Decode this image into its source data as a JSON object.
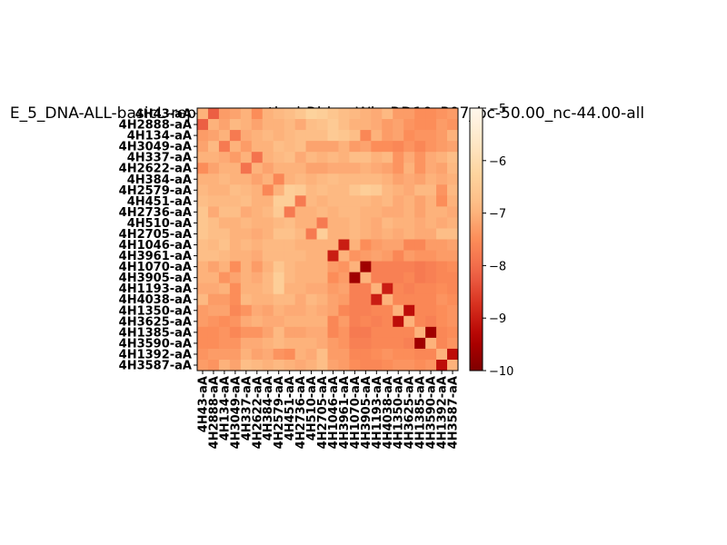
{
  "chart_data": {
    "type": "heatmap",
    "title": "E_5_DNA-ALL-basicL-rep-core_vertical-Ridge-WbnRD10_P07_bc-50.00_nc-44.00-all",
    "labels": [
      "4H43-aA",
      "4H2888-aA",
      "4H134-aA",
      "4H3049-aA",
      "4H337-aA",
      "4H2622-aA",
      "4H384-aA",
      "4H2579-aA",
      "4H451-aA",
      "4H2736-aA",
      "4H510-aA",
      "4H2705-aA",
      "4H1046-aA",
      "4H3961-aA",
      "4H1070-aA",
      "4H3905-aA",
      "4H1193-aA",
      "4H4038-aA",
      "4H1350-aA",
      "4H3625-aA",
      "4H1385-aA",
      "4H3590-aA",
      "4H1392-aA",
      "4H3587-aA"
    ],
    "colorbar": {
      "min": -10,
      "max": -5,
      "ticks": [
        -5,
        -6,
        -7,
        -8,
        -9,
        -10
      ],
      "colormap": "OrRd"
    },
    "values": [
      [
        -7.0,
        -8.2,
        -7.3,
        -7.2,
        -7.0,
        -7.5,
        -7.0,
        -6.9,
        -6.8,
        -6.6,
        -6.3,
        -6.4,
        -6.6,
        -6.8,
        -6.9,
        -7.0,
        -7.1,
        -6.9,
        -7.3,
        -7.3,
        -7.5,
        -7.5,
        -7.4,
        -7.3
      ],
      [
        -8.2,
        -7.0,
        -7.2,
        -6.9,
        -7.0,
        -7.2,
        -7.0,
        -7.0,
        -6.9,
        -7.1,
        -6.8,
        -6.7,
        -6.5,
        -6.8,
        -7.0,
        -7.0,
        -7.1,
        -7.3,
        -7.2,
        -7.4,
        -7.5,
        -7.5,
        -7.3,
        -7.4
      ],
      [
        -7.3,
        -7.2,
        -7.0,
        -7.8,
        -7.1,
        -7.0,
        -6.9,
        -7.0,
        -6.9,
        -6.8,
        -6.8,
        -6.8,
        -6.5,
        -6.6,
        -6.8,
        -7.6,
        -7.0,
        -7.3,
        -7.2,
        -7.5,
        -7.4,
        -7.4,
        -7.3,
        -7.0
      ],
      [
        -7.2,
        -6.9,
        -7.8,
        -7.0,
        -7.3,
        -7.0,
        -7.0,
        -6.8,
        -6.9,
        -6.8,
        -7.2,
        -7.2,
        -7.2,
        -7.0,
        -7.3,
        -7.2,
        -7.5,
        -7.5,
        -7.6,
        -7.4,
        -7.6,
        -7.4,
        -7.3,
        -7.2
      ],
      [
        -7.0,
        -7.0,
        -7.1,
        -7.3,
        -7.0,
        -7.9,
        -7.0,
        -6.9,
        -6.8,
        -7.1,
        -6.9,
        -7.0,
        -6.9,
        -7.0,
        -6.8,
        -6.8,
        -7.0,
        -6.9,
        -7.4,
        -7.1,
        -7.4,
        -7.1,
        -7.0,
        -6.8
      ],
      [
        -7.5,
        -7.2,
        -7.0,
        -7.0,
        -7.9,
        -7.0,
        -7.2,
        -7.0,
        -7.0,
        -7.0,
        -7.2,
        -7.2,
        -7.1,
        -7.1,
        -7.1,
        -7.0,
        -7.1,
        -7.2,
        -7.4,
        -7.0,
        -7.4,
        -7.1,
        -7.2,
        -6.9
      ],
      [
        -7.0,
        -7.0,
        -6.9,
        -7.0,
        -7.0,
        -7.2,
        -7.0,
        -7.6,
        -7.0,
        -6.9,
        -7.0,
        -6.9,
        -6.8,
        -6.9,
        -6.9,
        -6.9,
        -6.9,
        -7.0,
        -7.2,
        -7.1,
        -7.2,
        -7.0,
        -7.1,
        -7.0
      ],
      [
        -6.9,
        -7.0,
        -7.0,
        -6.8,
        -6.9,
        -7.0,
        -7.6,
        -7.0,
        -6.4,
        -6.5,
        -6.9,
        -6.8,
        -6.9,
        -6.9,
        -6.6,
        -6.4,
        -6.5,
        -6.9,
        -7.0,
        -7.1,
        -6.9,
        -6.9,
        -7.4,
        -6.9
      ],
      [
        -6.8,
        -6.9,
        -6.9,
        -6.9,
        -6.8,
        -7.0,
        -7.0,
        -6.4,
        -6.4,
        -7.8,
        -6.9,
        -7.0,
        -6.9,
        -6.9,
        -6.9,
        -6.9,
        -7.0,
        -6.9,
        -7.1,
        -7.0,
        -7.2,
        -7.0,
        -7.5,
        -7.0
      ],
      [
        -6.6,
        -7.1,
        -6.8,
        -6.8,
        -7.1,
        -7.0,
        -6.9,
        -6.5,
        -7.8,
        -7.0,
        -7.0,
        -6.9,
        -7.0,
        -6.9,
        -6.9,
        -7.0,
        -7.0,
        -7.1,
        -7.1,
        -7.0,
        -7.2,
        -7.0,
        -7.0,
        -7.1
      ],
      [
        -6.6,
        -6.8,
        -7.0,
        -7.0,
        -6.9,
        -7.0,
        -7.0,
        -6.9,
        -6.8,
        -7.0,
        -7.0,
        -7.8,
        -7.0,
        -7.0,
        -6.9,
        -7.0,
        -7.1,
        -6.9,
        -7.0,
        -7.0,
        -7.1,
        -7.0,
        -7.1,
        -7.0
      ],
      [
        -6.6,
        -6.8,
        -6.8,
        -7.0,
        -7.0,
        -7.1,
        -7.0,
        -6.7,
        -6.7,
        -6.9,
        -7.8,
        -6.4,
        -7.0,
        -7.0,
        -6.9,
        -7.0,
        -7.1,
        -7.0,
        -7.1,
        -7.0,
        -7.1,
        -7.1,
        -6.8,
        -6.8
      ],
      [
        -6.8,
        -6.9,
        -6.7,
        -7.0,
        -6.9,
        -7.0,
        -6.9,
        -6.9,
        -6.9,
        -7.0,
        -7.0,
        -7.0,
        -7.0,
        -9.0,
        -7.0,
        -7.5,
        -7.3,
        -7.2,
        -7.2,
        -7.6,
        -7.6,
        -7.3,
        -7.3,
        -7.2
      ],
      [
        -6.8,
        -6.8,
        -6.9,
        -7.0,
        -7.0,
        -7.1,
        -6.9,
        -6.9,
        -6.9,
        -6.9,
        -7.0,
        -7.0,
        -9.0,
        -7.0,
        -7.4,
        -7.3,
        -7.2,
        -7.3,
        -7.6,
        -7.3,
        -7.4,
        -7.4,
        -7.3,
        -7.3
      ],
      [
        -7.0,
        -7.2,
        -7.0,
        -7.5,
        -7.0,
        -7.3,
        -7.0,
        -6.6,
        -6.9,
        -7.0,
        -7.0,
        -7.0,
        -7.3,
        -7.4,
        -7.0,
        -9.6,
        -7.7,
        -7.7,
        -7.7,
        -7.7,
        -7.8,
        -7.7,
        -7.6,
        -7.5
      ],
      [
        -7.0,
        -7.0,
        -7.4,
        -7.2,
        -7.0,
        -7.1,
        -6.9,
        -6.4,
        -6.9,
        -7.0,
        -7.0,
        -7.0,
        -7.5,
        -7.3,
        -9.6,
        -7.0,
        -7.7,
        -7.7,
        -7.7,
        -7.6,
        -7.8,
        -7.7,
        -7.6,
        -7.6
      ],
      [
        -7.1,
        -7.1,
        -7.0,
        -7.5,
        -7.0,
        -7.0,
        -6.9,
        -6.4,
        -7.0,
        -7.0,
        -7.1,
        -7.1,
        -7.3,
        -7.2,
        -7.7,
        -7.7,
        -7.0,
        -9.0,
        -7.6,
        -7.7,
        -7.6,
        -7.6,
        -7.5,
        -7.6
      ],
      [
        -6.9,
        -7.3,
        -7.3,
        -7.5,
        -6.9,
        -7.0,
        -7.0,
        -6.9,
        -6.9,
        -7.1,
        -6.9,
        -7.0,
        -7.2,
        -7.3,
        -7.7,
        -7.7,
        -9.0,
        -7.0,
        -7.6,
        -7.6,
        -7.6,
        -7.6,
        -7.4,
        -7.5
      ],
      [
        -7.3,
        -7.2,
        -7.2,
        -7.6,
        -7.4,
        -7.1,
        -7.2,
        -7.0,
        -7.1,
        -7.1,
        -7.0,
        -7.1,
        -7.2,
        -7.6,
        -7.7,
        -7.7,
        -7.6,
        -7.6,
        -7.0,
        -9.2,
        -7.6,
        -7.6,
        -7.5,
        -7.4
      ],
      [
        -7.3,
        -7.4,
        -7.5,
        -7.4,
        -7.1,
        -7.0,
        -7.1,
        -7.1,
        -7.0,
        -7.0,
        -7.0,
        -7.0,
        -7.6,
        -7.3,
        -7.7,
        -7.6,
        -7.7,
        -7.6,
        -9.2,
        -7.0,
        -7.6,
        -7.7,
        -7.5,
        -7.4
      ],
      [
        -7.5,
        -7.5,
        -7.4,
        -7.6,
        -7.4,
        -7.4,
        -7.2,
        -6.9,
        -7.2,
        -7.2,
        -7.1,
        -7.1,
        -7.6,
        -7.4,
        -7.8,
        -7.8,
        -7.6,
        -7.6,
        -7.6,
        -7.6,
        -7.0,
        -9.6,
        -7.6,
        -7.5
      ],
      [
        -7.5,
        -7.5,
        -7.4,
        -7.4,
        -7.1,
        -7.1,
        -7.0,
        -6.9,
        -7.0,
        -7.0,
        -7.0,
        -7.1,
        -7.3,
        -7.4,
        -7.7,
        -7.7,
        -7.6,
        -7.6,
        -7.6,
        -7.7,
        -9.6,
        -7.0,
        -7.6,
        -7.4
      ],
      [
        -7.4,
        -7.3,
        -7.3,
        -7.3,
        -7.0,
        -7.2,
        -7.1,
        -7.4,
        -7.5,
        -7.0,
        -7.1,
        -6.8,
        -7.3,
        -7.3,
        -7.6,
        -7.6,
        -7.5,
        -7.4,
        -7.5,
        -7.5,
        -7.6,
        -7.6,
        -7.0,
        -9.2
      ],
      [
        -7.3,
        -7.4,
        -7.0,
        -7.2,
        -6.8,
        -6.9,
        -7.0,
        -6.9,
        -7.0,
        -7.1,
        -7.0,
        -6.8,
        -7.2,
        -7.3,
        -7.5,
        -7.6,
        -7.6,
        -7.5,
        -7.4,
        -7.4,
        -7.5,
        -7.4,
        -9.2,
        -7.0
      ]
    ]
  }
}
